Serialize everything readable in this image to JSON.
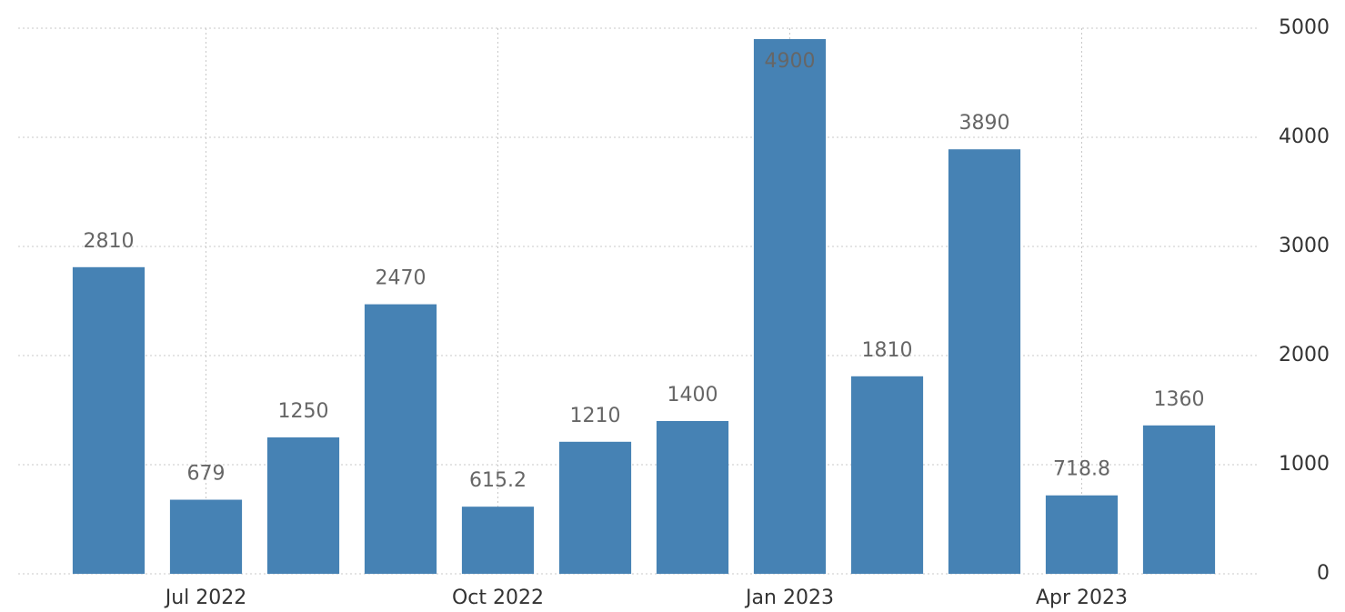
{
  "chart_data": {
    "type": "bar",
    "categories": [
      null,
      "Jul 2022",
      null,
      null,
      "Oct 2022",
      null,
      null,
      "Jan 2023",
      null,
      null,
      "Apr 2023",
      null
    ],
    "values": [
      2810,
      679,
      1250,
      2470,
      615.2,
      1210,
      1400,
      4900,
      1810,
      3890,
      718.8,
      1360
    ],
    "color": "#4682b4",
    "ylim": [
      0,
      5000
    ],
    "yticks": [
      0,
      1000,
      2000,
      3000,
      4000,
      5000
    ],
    "grid": true
  }
}
